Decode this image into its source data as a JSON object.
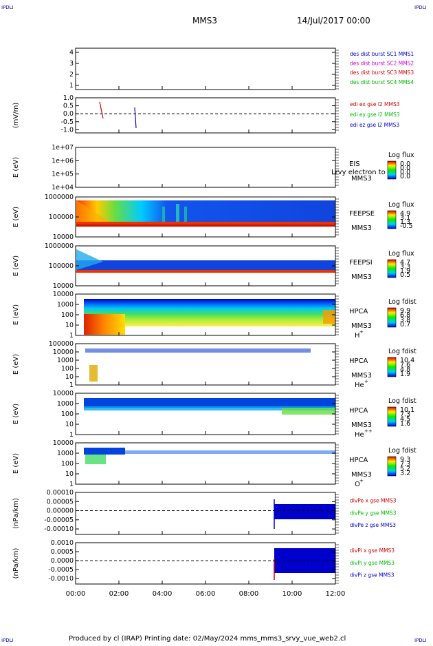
{
  "corner_label": "IPDLI",
  "header": {
    "spacecraft": "MMS3",
    "datetime": "14/Jul/2017 00:00"
  },
  "footer": "Produced by cl (IRAP)   Printing date: 02/May/2024   mms_mms3_srvy_vue_web2.cl",
  "time_axis": {
    "ticks": [
      "00:00",
      "02:00",
      "04:00",
      "06:00",
      "08:00",
      "10:00",
      "12:00"
    ],
    "range_hours": [
      0,
      12
    ]
  },
  "chart_data": [
    {
      "type": "scatter",
      "yticks": [
        "4",
        "3",
        "2",
        "1"
      ],
      "legend": [
        {
          "text": "des dist burst SC1 MMS1",
          "color": "#0000cc"
        },
        {
          "text": "des dist burst SC2 MMS2",
          "color": "#cc00cc"
        },
        {
          "text": "des dist burst SC3 MMS3",
          "color": "#cc0000"
        },
        {
          "text": "des dist burst SC4 MMS4",
          "color": "#00bb00"
        }
      ]
    },
    {
      "type": "scatter",
      "ylabel": "(mV/m)",
      "yticks": [
        "1.0",
        "0.5",
        "0.0",
        "-0.5",
        "-1.0"
      ],
      "ylim": [
        -1.2,
        1.0
      ],
      "legend": [
        {
          "text": "edi ex gse l2 MMS3",
          "color": "#cc0000"
        },
        {
          "text": "edi ey gse l2 MMS3",
          "color": "#00bb00"
        },
        {
          "text": "edi ez gse l2 MMS3",
          "color": "#0000cc"
        }
      ]
    },
    {
      "type": "heatmap",
      "ylabel": "E (eV)",
      "yticks": [
        "1e+07",
        "1e+06",
        "1e+05",
        "1e+04"
      ],
      "instrument": "EIS",
      "spacecraft": "MMS3",
      "overlay": "Lrvy electron to",
      "colorbar": {
        "title": "Log flux",
        "ticks": [
          "0.0",
          "0.0",
          "0.0",
          "0.0"
        ]
      }
    },
    {
      "type": "heatmap",
      "ylabel": "E (eV)",
      "yticks": [
        "1000000",
        "100000",
        "10000"
      ],
      "instrument": "FEEPSE",
      "spacecraft": "MMS3",
      "colorbar": {
        "title": "Log flux",
        "ticks": [
          "4.9",
          "3.1",
          "1.3",
          "-0.5"
        ]
      }
    },
    {
      "type": "heatmap",
      "ylabel": "E (eV)",
      "yticks": [
        "1000000",
        "100000",
        "10000"
      ],
      "instrument": "FEEPSI",
      "spacecraft": "MMS3",
      "colorbar": {
        "title": "Log flux",
        "ticks": [
          "4.7",
          "3.3",
          "1.9",
          "0.5"
        ]
      }
    },
    {
      "type": "heatmap",
      "ylabel": "E (eV)",
      "yticks": [
        "10000",
        "1000",
        "100",
        "10",
        "1"
      ],
      "instrument": "HPCA",
      "spacecraft": "MMS3",
      "species": "H",
      "charge": "+",
      "colorbar": {
        "title": "Log fdist",
        "ticks": [
          "9.9",
          "6.8",
          "3.8",
          "0.7"
        ]
      }
    },
    {
      "type": "heatmap",
      "ylabel": "E (eV)",
      "yticks": [
        "100000",
        "10000",
        "1000",
        "100",
        "10",
        "1"
      ],
      "instrument": "HPCA",
      "spacecraft": "MMS3",
      "species": "He",
      "charge": "+",
      "colorbar": {
        "title": "Log fdist",
        "ticks": [
          "10.4",
          "7.6",
          "4.8",
          "1.9"
        ]
      }
    },
    {
      "type": "heatmap",
      "ylabel": "E (eV)",
      "yticks": [
        "10000",
        "1000",
        "100",
        "10",
        "1"
      ],
      "instrument": "HPCA",
      "spacecraft": "MMS3",
      "species": "He",
      "charge": "++",
      "colorbar": {
        "title": "Log fdist",
        "ticks": [
          "10.1",
          "7.3",
          "4.5",
          "1.6"
        ]
      }
    },
    {
      "type": "heatmap",
      "ylabel": "E (eV)",
      "yticks": [
        "10000",
        "1000",
        "100",
        "10",
        "1"
      ],
      "instrument": "HPCA",
      "spacecraft": "MMS3",
      "species": "O",
      "charge": "+",
      "colorbar": {
        "title": "Log fdist",
        "ticks": [
          "9.3",
          "7.3",
          "5.2",
          "3.2"
        ]
      }
    },
    {
      "type": "line",
      "ylabel": "(nPa/km)",
      "yticks": [
        "0.00010",
        "0.00005",
        "0.00000",
        "-0.00005",
        "-0.00010"
      ],
      "ylim": [
        -0.00013,
        0.0001
      ],
      "legend": [
        {
          "text": "divPe x gse MMS3",
          "color": "#cc0000"
        },
        {
          "text": "divPe y gse MMS3",
          "color": "#00bb00"
        },
        {
          "text": "divPe z gse MMS3",
          "color": "#0000cc"
        }
      ]
    },
    {
      "type": "line",
      "ylabel": "(nPa/km)",
      "yticks": [
        "0.0010",
        "0.0005",
        "0.0000",
        "-0.0005",
        "-0.0010"
      ],
      "ylim": [
        -0.0013,
        0.001
      ],
      "legend": [
        {
          "text": "divPi x gse MMS3",
          "color": "#cc0000"
        },
        {
          "text": "divPi y gse MMS3",
          "color": "#00bb00"
        },
        {
          "text": "divPi z gse MMS3",
          "color": "#0000cc"
        }
      ]
    }
  ]
}
